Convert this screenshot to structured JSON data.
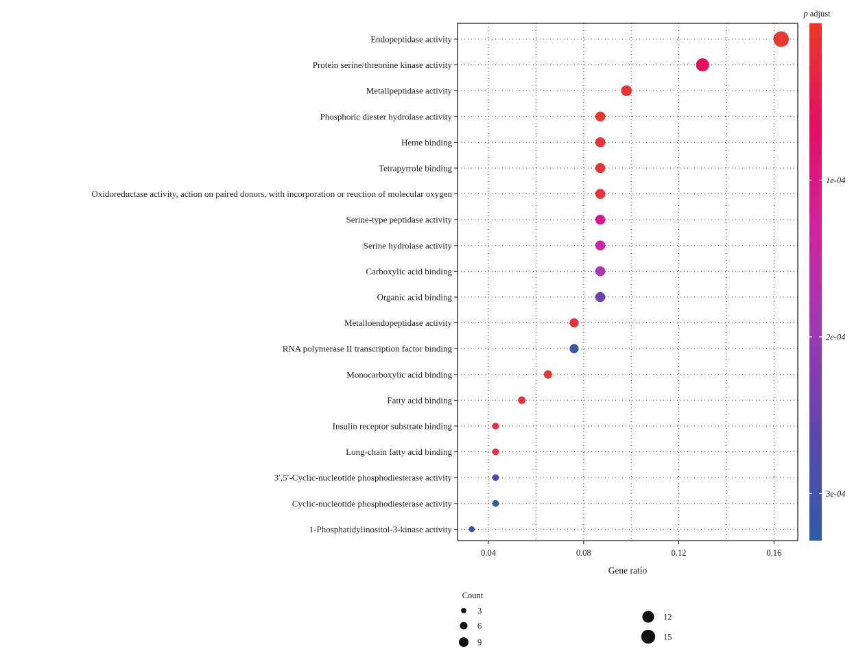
{
  "chart_data": {
    "type": "scatter",
    "xlabel": "Gene ratio",
    "x_ticks": [
      "0.04",
      "0.08",
      "0.12",
      "0.16"
    ],
    "xlim": [
      0.027,
      0.17
    ],
    "grid": true,
    "categories": [
      "Endopeptidase activity",
      "Protein serine/threonine kinase activity",
      "Metallpeptidase activity",
      "Phosphoric diester hydrolase activity",
      "Heme binding",
      "Tetrapyrrole binding",
      "Oxidoreductase activity, action on paired donors, with incorporation or reuction of molecular oxygen",
      "Serine-type peptidase activity",
      "Serine hydrolase activity",
      "Carboxylic acid binding",
      "Organic acid binding",
      "Metalloendopeptidase activity",
      "RNA polymerase II transcription factor binding",
      "Monocarboxylic acid binding",
      "Fatty acid binding",
      "Insulin receptor substrate binding",
      "Long-chain fatty acid binding",
      "3′,5′-Cyclic-nucleotide phosphodiesterase activity",
      "Cyclic-nucleotide phosphodiesterase activity",
      "1-Phosphatidylinositol-3-kinase activity"
    ],
    "points": [
      {
        "gene_ratio": 0.163,
        "count": 15,
        "p_adjust": 1e-05,
        "color": "#e53a2d"
      },
      {
        "gene_ratio": 0.13,
        "count": 12,
        "p_adjust": 9e-05,
        "color": "#e2115c"
      },
      {
        "gene_ratio": 0.098,
        "count": 9,
        "p_adjust": 2e-05,
        "color": "#e4343a"
      },
      {
        "gene_ratio": 0.087,
        "count": 8,
        "p_adjust": 1e-05,
        "color": "#e53a2d"
      },
      {
        "gene_ratio": 0.087,
        "count": 8,
        "p_adjust": 2e-05,
        "color": "#e4343a"
      },
      {
        "gene_ratio": 0.087,
        "count": 8,
        "p_adjust": 2e-05,
        "color": "#e4343a"
      },
      {
        "gene_ratio": 0.087,
        "count": 8,
        "p_adjust": 2e-05,
        "color": "#e4343a"
      },
      {
        "gene_ratio": 0.087,
        "count": 8,
        "p_adjust": 0.00013,
        "color": "#d71a8a"
      },
      {
        "gene_ratio": 0.087,
        "count": 8,
        "p_adjust": 0.00016,
        "color": "#c928a4"
      },
      {
        "gene_ratio": 0.087,
        "count": 8,
        "p_adjust": 0.00022,
        "color": "#a938b2"
      },
      {
        "gene_ratio": 0.087,
        "count": 8,
        "p_adjust": 0.00028,
        "color": "#6b45ae"
      },
      {
        "gene_ratio": 0.076,
        "count": 7,
        "p_adjust": 2e-05,
        "color": "#e33240"
      },
      {
        "gene_ratio": 0.076,
        "count": 7,
        "p_adjust": 0.00032,
        "color": "#3a57a8"
      },
      {
        "gene_ratio": 0.065,
        "count": 6,
        "p_adjust": 1e-05,
        "color": "#e53a2d"
      },
      {
        "gene_ratio": 0.054,
        "count": 5,
        "p_adjust": 2e-05,
        "color": "#e33240"
      },
      {
        "gene_ratio": 0.043,
        "count": 4,
        "p_adjust": 2e-05,
        "color": "#e33240"
      },
      {
        "gene_ratio": 0.043,
        "count": 4,
        "p_adjust": 2e-05,
        "color": "#e33240"
      },
      {
        "gene_ratio": 0.043,
        "count": 4,
        "p_adjust": 0.00029,
        "color": "#5a47ab"
      },
      {
        "gene_ratio": 0.043,
        "count": 4,
        "p_adjust": 0.00032,
        "color": "#3a57a8"
      },
      {
        "gene_ratio": 0.033,
        "count": 3,
        "p_adjust": 0.00033,
        "color": "#3456a8"
      }
    ],
    "color_scale": {
      "title_italic": "p",
      "title_rest": " adjust",
      "domain": [
        0.00033,
        0.0
      ],
      "ticks": [
        {
          "value": 0.0001,
          "label": "1e-04"
        },
        {
          "value": 0.0002,
          "label": "2e-04"
        },
        {
          "value": 0.0003,
          "label": "3e-04"
        }
      ],
      "colors": [
        "#e83a26",
        "#e20f62",
        "#cf259e",
        "#9a39b4",
        "#5a47ab",
        "#2e5aa8"
      ]
    },
    "size_legend": {
      "title": "Count",
      "entries": [
        {
          "count": 3,
          "label": "3"
        },
        {
          "count": 6,
          "label": "6"
        },
        {
          "count": 9,
          "label": "9"
        },
        {
          "count": 12,
          "label": "12"
        },
        {
          "count": 15,
          "label": "15"
        }
      ]
    }
  }
}
